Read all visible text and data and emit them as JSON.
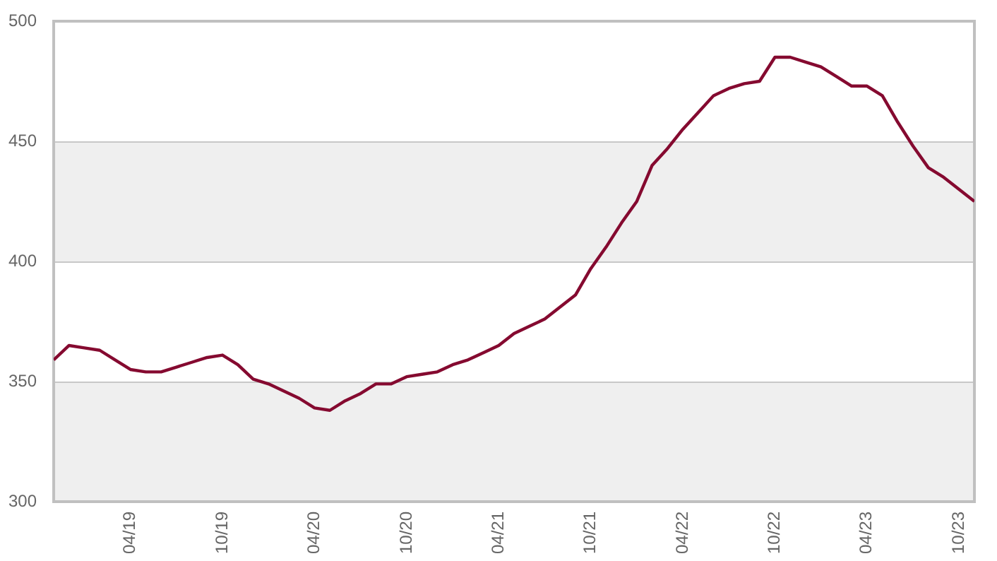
{
  "chart_data": {
    "type": "line",
    "x": [
      "2018-11",
      "2018-12",
      "2019-01",
      "2019-02",
      "2019-03",
      "2019-04",
      "2019-05",
      "2019-06",
      "2019-07",
      "2019-08",
      "2019-09",
      "2019-10",
      "2019-11",
      "2019-12",
      "2020-01",
      "2020-02",
      "2020-03",
      "2020-04",
      "2020-05",
      "2020-06",
      "2020-07",
      "2020-08",
      "2020-09",
      "2020-10",
      "2020-11",
      "2020-12",
      "2021-01",
      "2021-02",
      "2021-03",
      "2021-04",
      "2021-05",
      "2021-06",
      "2021-07",
      "2021-08",
      "2021-09",
      "2021-10",
      "2021-11",
      "2021-12",
      "2022-01",
      "2022-02",
      "2022-03",
      "2022-04",
      "2022-05",
      "2022-06",
      "2022-07",
      "2022-08",
      "2022-09",
      "2022-10",
      "2022-11",
      "2022-12",
      "2023-01",
      "2023-02",
      "2023-03",
      "2023-04",
      "2023-05",
      "2023-06",
      "2023-07",
      "2023-08",
      "2023-09",
      "2023-10",
      "2023-11"
    ],
    "series": [
      {
        "color": "#850a30",
        "values": [
          359,
          365,
          364,
          363,
          359,
          355,
          354,
          354,
          356,
          358,
          360,
          361,
          357,
          351,
          349,
          346,
          343,
          339,
          338,
          342,
          345,
          349,
          349,
          352,
          353,
          354,
          357,
          359,
          362,
          365,
          370,
          373,
          376,
          381,
          386,
          397,
          406,
          416,
          425,
          440,
          447,
          455,
          462,
          469,
          472,
          474,
          475,
          485,
          485,
          483,
          481,
          477,
          473,
          473,
          469,
          458,
          448,
          439,
          435,
          430,
          425
        ]
      }
    ],
    "xlim": [
      "2018-11",
      "2023-11"
    ],
    "xticks": [
      {
        "value": "2019-04",
        "label": "04/19"
      },
      {
        "value": "2019-10",
        "label": "10/19"
      },
      {
        "value": "2020-04",
        "label": "04/20"
      },
      {
        "value": "2020-10",
        "label": "10/20"
      },
      {
        "value": "2021-04",
        "label": "04/21"
      },
      {
        "value": "2021-10",
        "label": "10/21"
      },
      {
        "value": "2022-04",
        "label": "04/22"
      },
      {
        "value": "2022-10",
        "label": "10/22"
      },
      {
        "value": "2023-04",
        "label": "04/23"
      },
      {
        "value": "2023-10",
        "label": "10/23"
      }
    ],
    "ylim": [
      300,
      500
    ],
    "yticks": [
      300,
      350,
      400,
      450,
      500
    ],
    "grid": "y",
    "legend": false,
    "marker": "none",
    "line_style": "solid",
    "bands": [
      {
        "axis": "y",
        "from": 300,
        "to": 350,
        "color": "#efefef"
      },
      {
        "axis": "y",
        "from": 400,
        "to": 450,
        "color": "#efefef"
      }
    ]
  }
}
